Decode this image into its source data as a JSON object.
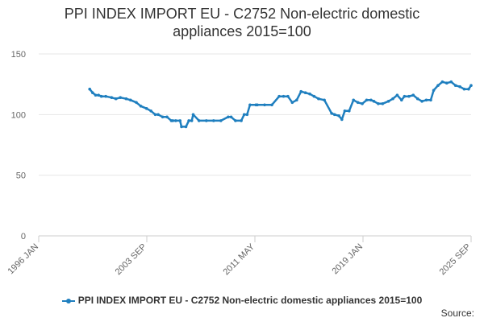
{
  "chart_data": {
    "type": "line",
    "title": "PPI INDEX IMPORT EU - C2752 Non-electric domestic appliances 2015=100",
    "xlabel": "",
    "ylabel": "",
    "x_ticks": [
      "1996 JAN",
      "2003 SEP",
      "2011 MAY",
      "2019 JAN",
      "2025 SEP"
    ],
    "x_range": [
      1996.0,
      2025.67
    ],
    "y_ticks": [
      0,
      50,
      100,
      150
    ],
    "ylim": [
      0,
      150
    ],
    "grid": true,
    "legend_position": "bottom-center",
    "series": [
      {
        "name": "PPI INDEX IMPORT EU - C2752 Non-electric domestic appliances 2015=100",
        "color": "#1f7fbf",
        "x": [
          1999.5,
          1999.7,
          1999.9,
          2000.1,
          2000.3,
          2000.6,
          2001.0,
          2001.3,
          2001.6,
          2002.0,
          2002.3,
          2002.7,
          2003.0,
          2003.4,
          2003.7,
          2004.0,
          2004.2,
          2004.5,
          2004.8,
          2005.1,
          2005.2,
          2005.4,
          2005.7,
          2005.8,
          2006.1,
          2006.3,
          2006.5,
          2006.6,
          2007.0,
          2007.5,
          2008.0,
          2008.5,
          2009.0,
          2009.2,
          2009.5,
          2009.9,
          2010.1,
          2010.3,
          2010.5,
          2010.9,
          2011.0,
          2011.5,
          2012.0,
          2012.5,
          2012.8,
          2013.1,
          2013.4,
          2013.7,
          2014.0,
          2014.3,
          2014.6,
          2014.9,
          2015.2,
          2015.6,
          2016.1,
          2016.3,
          2016.6,
          2016.8,
          2017.0,
          2017.3,
          2017.6,
          2017.9,
          2018.2,
          2018.5,
          2018.8,
          2019.0,
          2019.3,
          2019.6,
          2020.0,
          2020.3,
          2020.6,
          2020.9,
          2021.1,
          2021.4,
          2021.7,
          2022.0,
          2022.3,
          2022.6,
          2022.9,
          2023.1,
          2023.4,
          2023.7,
          2024.0,
          2024.3,
          2024.6,
          2024.9,
          2025.2,
          2025.5,
          2025.67
        ],
        "values": [
          121,
          118,
          116,
          116,
          115,
          115,
          114,
          113,
          114,
          113,
          112,
          110,
          107,
          105,
          103,
          100,
          100,
          98,
          98,
          95,
          95,
          95,
          95,
          90,
          90,
          95,
          95,
          100,
          95,
          95,
          95,
          95,
          98,
          98,
          95,
          95,
          100,
          100,
          108,
          108,
          108,
          108,
          108,
          115,
          115,
          115,
          110,
          112,
          119,
          118,
          117,
          115,
          113,
          112,
          101,
          100,
          99,
          96,
          103,
          103,
          112,
          110,
          109,
          112,
          112,
          111,
          109,
          109,
          111,
          113,
          116,
          112,
          115,
          115,
          116,
          113,
          111,
          112,
          112,
          120,
          124,
          127,
          126,
          127,
          124,
          123,
          121,
          121,
          124
        ]
      }
    ]
  },
  "legend": {
    "label": "PPI INDEX IMPORT EU - C2752 Non-electric domestic appliances 2015=100"
  },
  "source": {
    "label": "Source:"
  }
}
